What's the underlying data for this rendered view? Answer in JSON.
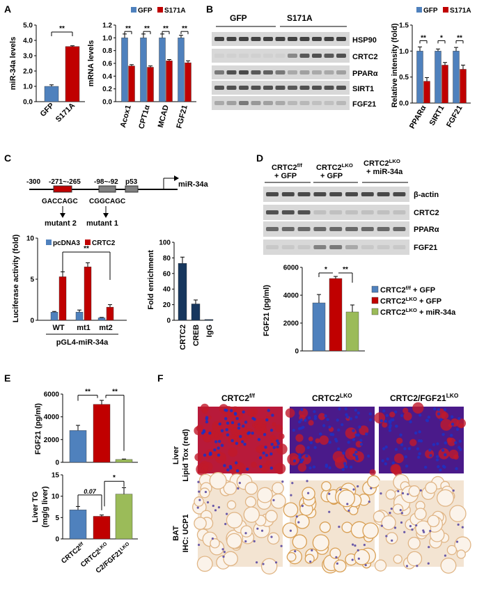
{
  "panel_letters": [
    "A",
    "B",
    "C",
    "D",
    "E",
    "F"
  ],
  "colors": {
    "blue": "#4f81bd",
    "red": "#c00000",
    "green": "#9bbb59",
    "gel": "#d8d8d8",
    "band": "#3a3a3a",
    "liver_red": "#c0192a",
    "liver_blue": "#2030c0",
    "bat_bg": "#f3e4d2"
  },
  "chart_data": [
    {
      "id": "A1",
      "type": "bar",
      "title": "",
      "ylabel": "miR-34a levels",
      "categories": [
        "GFP",
        "S171A"
      ],
      "values": [
        1.0,
        3.6
      ],
      "errors": [
        0.1,
        0.05
      ],
      "colors": [
        "#4f81bd",
        "#c00000"
      ],
      "yticks": [
        "0.0",
        "1.0",
        "2.0",
        "3.0",
        "4.0",
        "5.0"
      ],
      "ylim": [
        0,
        5
      ],
      "significance": [
        "**"
      ]
    },
    {
      "id": "A2",
      "type": "bar",
      "ylabel": "mRNA levels",
      "legend": [
        "GFP",
        "S171A"
      ],
      "categories": [
        "Acox1",
        "CPT1α",
        "MCAD",
        "FGF21"
      ],
      "series": [
        {
          "name": "GFP",
          "values": [
            1.0,
            1.0,
            1.0,
            1.0
          ],
          "errors": [
            0.06,
            0.06,
            0.06,
            0.04
          ]
        },
        {
          "name": "S171A",
          "values": [
            0.56,
            0.54,
            0.64,
            0.61
          ],
          "errors": [
            0.02,
            0.02,
            0.02,
            0.03
          ]
        }
      ],
      "yticks": [
        "0.0",
        "0.2",
        "0.4",
        "0.6",
        "0.8",
        "1.0",
        "1.2"
      ],
      "ylim": [
        0,
        1.2
      ],
      "significance": [
        "**",
        "**",
        "**",
        "**"
      ]
    },
    {
      "id": "B",
      "type": "bar",
      "ylabel": "Relative intensity (fold)",
      "legend": [
        "GFP",
        "S171A"
      ],
      "categories": [
        "PPARα",
        "SIRT1",
        "FGF21"
      ],
      "series": [
        {
          "name": "GFP",
          "values": [
            1.0,
            1.0,
            1.0
          ],
          "errors": [
            0.08,
            0.04,
            0.07
          ]
        },
        {
          "name": "S171A",
          "values": [
            0.42,
            0.73,
            0.65
          ],
          "errors": [
            0.07,
            0.05,
            0.08
          ]
        }
      ],
      "yticks": [
        "0.0",
        "0.5",
        "1.0",
        "1.5"
      ],
      "ylim": [
        0,
        1.5
      ],
      "significance": [
        "**",
        "*",
        "**"
      ]
    },
    {
      "id": "C1",
      "type": "bar",
      "ylabel": "Luciferase activity (fold)",
      "legend": [
        "pcDNA3",
        "CRTC2"
      ],
      "categories": [
        "WT",
        "mt1",
        "mt2"
      ],
      "group_label": "pGL4-miR-34a",
      "series": [
        {
          "name": "pcDNA3",
          "values": [
            1.0,
            1.0,
            0.3
          ],
          "errors": [
            0.08,
            0.25,
            0.05
          ]
        },
        {
          "name": "CRTC2",
          "values": [
            5.3,
            6.5,
            1.6
          ],
          "errors": [
            0.6,
            0.5,
            0.3
          ]
        }
      ],
      "yticks": [
        "0",
        "5",
        "10"
      ],
      "ylim": [
        0,
        10
      ],
      "significance": [
        "**"
      ]
    },
    {
      "id": "C2",
      "type": "bar",
      "ylabel": "Fold enrichment",
      "categories": [
        "CRTC2",
        "CREB",
        "IgG"
      ],
      "values": [
        73,
        21,
        1
      ],
      "errors": [
        8,
        5,
        0
      ],
      "colors": [
        "#17375e",
        "#17375e",
        "#17375e"
      ],
      "yticks": [
        "0",
        "20",
        "40",
        "60",
        "80",
        "100"
      ],
      "ylim": [
        0,
        100
      ]
    },
    {
      "id": "D",
      "type": "bar",
      "ylabel": "FGF21 (pg/ml)",
      "legend": [
        "CRTC2f/f + GFP",
        "CRTC2LKO + GFP",
        "CRTC2LKO + miR-34a"
      ],
      "categories": [
        "CRTC2f/f + GFP",
        "CRTC2LKO + GFP",
        "CRTC2LKO + miR-34a"
      ],
      "values": [
        3450,
        5200,
        2800
      ],
      "errors": [
        600,
        150,
        500
      ],
      "colors": [
        "#4f81bd",
        "#c00000",
        "#9bbb59"
      ],
      "yticks": [
        "0",
        "2000",
        "4000",
        "6000"
      ],
      "ylim": [
        0,
        6000
      ],
      "significance": [
        "*",
        "**"
      ]
    },
    {
      "id": "E1",
      "type": "bar",
      "ylabel": "FGF21 (pg/ml)",
      "categories": [
        "CRTC2f/f",
        "CRTC2LKO",
        "C2/FGF21LKO"
      ],
      "values": [
        2800,
        5100,
        250
      ],
      "errors": [
        450,
        350,
        40
      ],
      "colors": [
        "#4f81bd",
        "#c00000",
        "#9bbb59"
      ],
      "yticks": [
        "0",
        "2000",
        "4000",
        "6000"
      ],
      "ylim": [
        0,
        6000
      ],
      "significance": [
        "**",
        "**"
      ]
    },
    {
      "id": "E2",
      "type": "bar",
      "ylabel": "Liver TG (mg/g liver)",
      "categories": [
        "CRTC2f/f",
        "CRTC2LKO",
        "C2/FGF21LKO"
      ],
      "values": [
        6.8,
        5.3,
        10.5
      ],
      "errors": [
        0.8,
        0.3,
        1.5
      ],
      "colors": [
        "#4f81bd",
        "#c00000",
        "#9bbb59"
      ],
      "yticks": [
        "0",
        "5",
        "10",
        "15"
      ],
      "ylim": [
        0,
        15
      ],
      "significance": [
        "0.07",
        "*"
      ]
    }
  ],
  "westernB": {
    "groups": [
      "GFP",
      "S171A"
    ],
    "rows": [
      "HSP90",
      "CRTC2",
      "PPARα",
      "SIRT1",
      "FGF21"
    ]
  },
  "promoter": {
    "positions": [
      "-300",
      "-271~-265",
      "-98~-92",
      "p53"
    ],
    "target": "miR-34a",
    "seqs": [
      "GACCAGC",
      "CGGCAGC"
    ],
    "mutants": [
      "mutant 2",
      "mutant 1"
    ]
  },
  "westernD": {
    "groups": [
      "CRTC2f/f",
      "+ GFP",
      "CRTC2LKO",
      "+ GFP",
      "CRTC2LKO",
      "+ miR-34a"
    ],
    "rows": [
      "β-actin",
      "CRTC2",
      "PPARα",
      "FGF21"
    ]
  },
  "panelF": {
    "columns": [
      "CRTC2f/f",
      "CRTC2LKO",
      "CRTC2/FGF21LKO"
    ],
    "rows": [
      [
        "Liver",
        "Lipid Tox (red)"
      ],
      [
        "BAT",
        "IHC: UCP1"
      ]
    ]
  }
}
